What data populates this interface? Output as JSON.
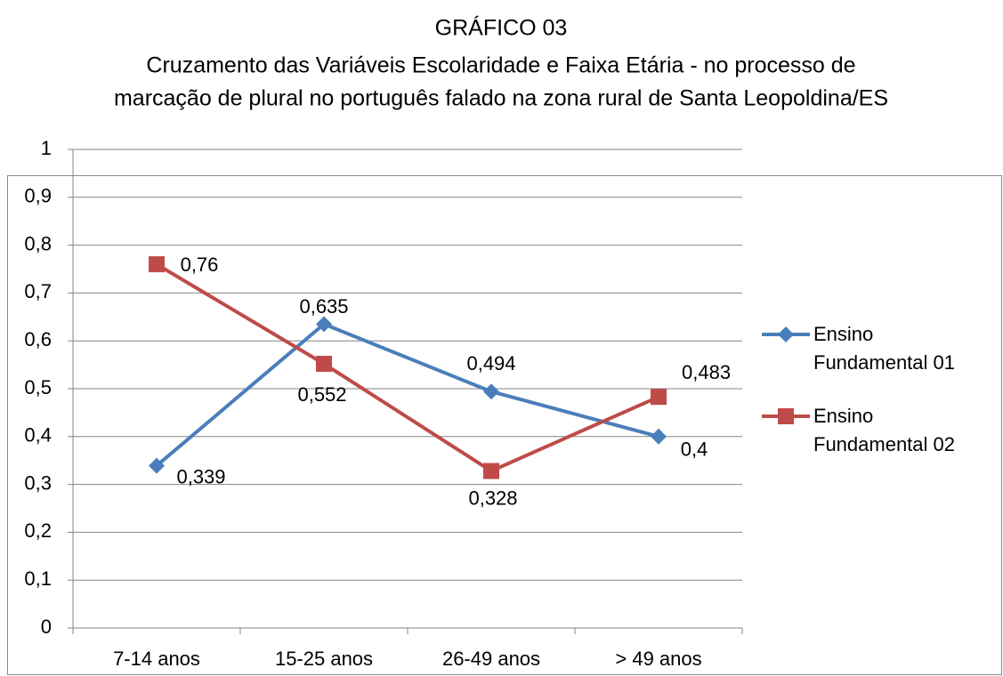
{
  "chart_data": {
    "type": "line",
    "title": "GRÁFICO 03",
    "subtitle": [
      "Cruzamento das Variáveis Escolaridade e Faixa Etária - no processo de",
      "marcação de plural no português falado na zona rural de Santa Leopoldina/ES"
    ],
    "categories": [
      "7-14 anos",
      "15-25 anos",
      "26-49 anos",
      "> 49 anos"
    ],
    "series": [
      {
        "name": "Ensino Fundamental 01",
        "color": "#4a7ebb",
        "marker": "diamond",
        "values": [
          0.339,
          0.635,
          0.494,
          0.4
        ],
        "value_labels": [
          "0,339",
          "0,635",
          "0,494",
          "0,4"
        ]
      },
      {
        "name": "Ensino Fundamental 02",
        "color": "#be4b48",
        "marker": "square",
        "values": [
          0.76,
          0.552,
          0.328,
          0.483
        ],
        "value_labels": [
          "0,76",
          "0,552",
          "0,328",
          "0,483"
        ]
      }
    ],
    "ylim": [
      0,
      1
    ],
    "yticks": [
      0,
      {
        "value": 0.1,
        "label": "0,1"
      },
      {
        "value": 0.2,
        "label": "0,2"
      },
      {
        "value": 0.3,
        "label": "0,3"
      },
      {
        "value": 0.4,
        "label": "0,4"
      },
      {
        "value": 0.5,
        "label": "0,5"
      },
      {
        "value": 0.6,
        "label": "0,6"
      },
      {
        "value": 0.7,
        "label": "0,7"
      },
      {
        "value": 0.8,
        "label": "0,8"
      },
      {
        "value": 0.9,
        "label": "0,9"
      },
      1
    ],
    "grid": true,
    "legend": "right"
  }
}
